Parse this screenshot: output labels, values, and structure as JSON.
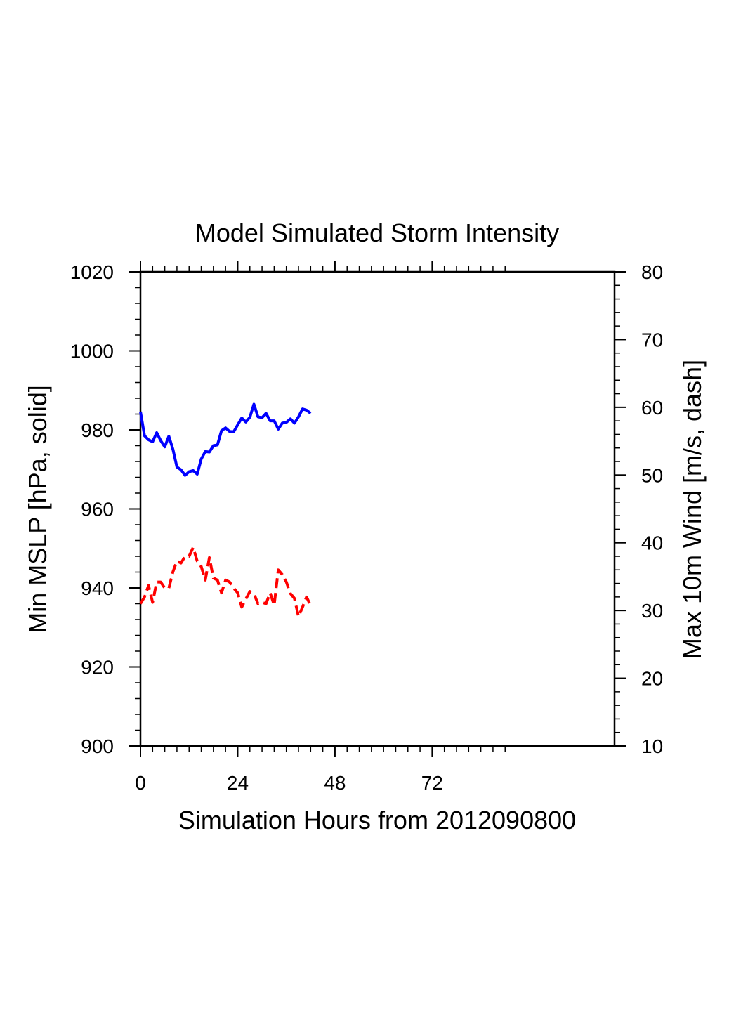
{
  "chart_data": {
    "type": "line",
    "title": "Model Simulated Storm Intensity",
    "xlabel": "Simulation Hours from 2012090800",
    "ylabel_left": "Min MSLP  [hPa, solid]",
    "ylabel_right": "Max 10m Wind  [m/s, dash]",
    "xlim": [
      0,
      117
    ],
    "x_ticks": [
      0,
      24,
      48,
      72
    ],
    "x_minor_max": 90,
    "ylim_left": [
      900,
      1020
    ],
    "y_ticks_left": [
      900,
      920,
      940,
      960,
      980,
      1000,
      1020
    ],
    "ylim_right": [
      10,
      80
    ],
    "y_ticks_right": [
      10,
      20,
      30,
      40,
      50,
      60,
      70,
      80
    ],
    "grid": false,
    "series": [
      {
        "axis": "left",
        "style": "solid",
        "color": "#0000ff",
        "x": [
          0,
          1,
          2,
          3,
          4,
          5,
          6,
          7,
          8,
          9,
          10,
          11,
          12,
          13,
          14,
          15,
          16,
          17,
          18,
          19,
          20,
          21,
          22,
          23,
          24,
          25,
          26,
          27,
          28,
          29,
          30,
          31,
          32,
          33,
          34,
          35,
          36,
          37,
          38,
          39,
          40,
          41,
          42
        ],
        "y": [
          984.6,
          978.5,
          977.5,
          977.0,
          979.3,
          977.3,
          975.7,
          978.4,
          975.1,
          970.6,
          969.9,
          968.5,
          969.4,
          969.7,
          968.8,
          972.6,
          974.5,
          974.4,
          976.0,
          976.2,
          979.8,
          980.5,
          979.6,
          979.5,
          981.3,
          983.0,
          982.0,
          983.2,
          986.5,
          983.3,
          983.1,
          984.2,
          982.3,
          982.3,
          980.2,
          981.7,
          981.9,
          982.8,
          981.7,
          983.3,
          985.3,
          985.0,
          984.2
        ]
      },
      {
        "axis": "right",
        "style": "dash",
        "color": "#ff0000",
        "x": [
          0,
          1,
          2,
          3,
          4,
          5,
          6,
          7,
          8,
          9,
          10,
          11,
          12,
          13,
          14,
          15,
          16,
          17,
          18,
          19,
          20,
          21,
          22,
          23,
          24,
          25,
          26,
          27,
          28,
          29,
          30,
          31,
          32,
          33,
          34,
          35,
          36,
          37,
          38,
          39,
          40,
          41,
          42
        ],
        "y": [
          31.0,
          32.0,
          33.7,
          31.2,
          34.2,
          34.2,
          33.3,
          33.3,
          35.7,
          37.3,
          37.0,
          38.0,
          38.0,
          39.3,
          37.3,
          36.5,
          34.5,
          37.8,
          34.8,
          34.5,
          32.6,
          34.5,
          34.2,
          33.3,
          32.6,
          30.5,
          31.7,
          32.8,
          32.5,
          31.0,
          31.2,
          31.0,
          32.6,
          30.8,
          36.0,
          35.3,
          34.2,
          32.5,
          31.8,
          29.1,
          30.5,
          32.0,
          30.7
        ]
      }
    ]
  }
}
